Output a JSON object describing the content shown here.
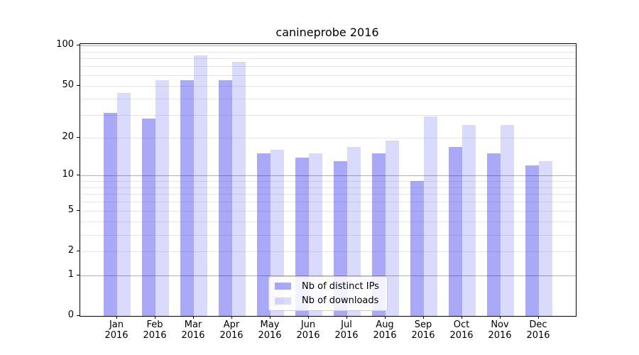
{
  "chart_data": {
    "type": "bar",
    "title": "canineprobe 2016",
    "categories": [
      "Jan",
      "Feb",
      "Mar",
      "Apr",
      "May",
      "Jun",
      "Jul",
      "Aug",
      "Sep",
      "Oct",
      "Nov",
      "Dec"
    ],
    "year_label": "2016",
    "series": [
      {
        "name": "Nb of distinct IPs",
        "values": [
          31,
          28,
          55,
          55,
          15,
          14,
          13,
          15,
          9,
          17,
          15,
          12
        ],
        "color": "rgba(10,10,235,0.35)"
      },
      {
        "name": "Nb of downloads",
        "values": [
          44,
          55,
          84,
          76,
          16,
          15,
          17,
          19,
          29,
          25,
          25,
          13
        ],
        "color": "rgba(10,10,235,0.15)"
      }
    ],
    "yscale": "log1p",
    "ylim": [
      0,
      103
    ],
    "ytick_values": [
      100,
      50,
      20,
      10,
      5,
      2,
      1,
      0
    ],
    "ytick_labels": [
      "100",
      "50",
      "20",
      "10",
      "5",
      "2",
      "1",
      "0"
    ],
    "major_grid_values": [
      1,
      10,
      100
    ],
    "minor_grid_values": [
      2,
      3,
      4,
      5,
      6,
      7,
      8,
      9,
      20,
      30,
      40,
      50,
      60,
      70,
      80,
      90
    ],
    "grid": true,
    "legend_position": "lower-center",
    "colors": {
      "axis": "#000000",
      "major_grid": "#b0b0b0",
      "minor_grid": "#e7e7e7",
      "background": "#ffffff"
    }
  }
}
